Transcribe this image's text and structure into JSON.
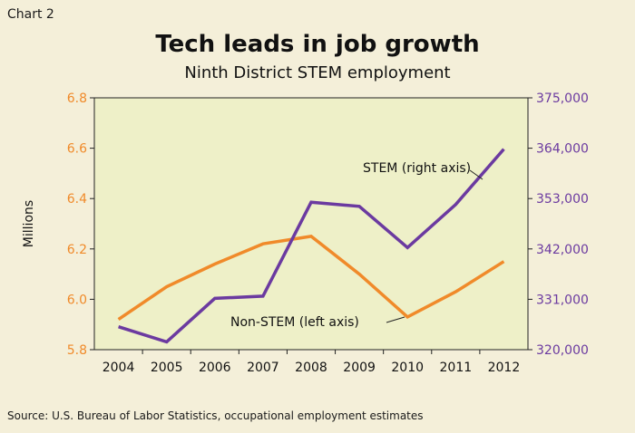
{
  "header": {
    "label": "Chart 2",
    "title": "Tech leads in job growth",
    "subtitle": "Ninth District STEM employment"
  },
  "footer": {
    "source": "Source: U.S. Bureau of Labor Statistics, occupational employment estimates"
  },
  "colors": {
    "background": "#f4efd9",
    "plot_area": "#eef0c8",
    "non_stem": "#f08a2a",
    "stem": "#6b3aa0"
  },
  "chart_data": {
    "type": "line",
    "title": "Tech leads in job growth",
    "subtitle": "Ninth District STEM employment",
    "categories": [
      "2004",
      "2005",
      "2006",
      "2007",
      "2008",
      "2009",
      "2010",
      "2011",
      "2012"
    ],
    "ylabel": "Millions",
    "ylim_left": [
      5.8,
      6.8
    ],
    "yticks_left": [
      "5.8",
      "6.0",
      "6.2",
      "6.4",
      "6.6",
      "6.8"
    ],
    "ylim_right": [
      320000,
      375000
    ],
    "yticks_right": [
      "320,000",
      "331,000",
      "342,000",
      "353,000",
      "364,000",
      "375,000"
    ],
    "grid": false,
    "series": [
      {
        "name": "Non-STEM (left axis)",
        "axis": "left",
        "color": "#f08a2a",
        "values": [
          5.92,
          6.05,
          6.14,
          6.22,
          6.25,
          6.1,
          5.93,
          6.03,
          6.15
        ]
      },
      {
        "name": "STEM (right axis)",
        "axis": "right",
        "color": "#6b3aa0",
        "values": [
          325000,
          321700,
          331200,
          331700,
          352200,
          351300,
          342300,
          351700,
          363800
        ]
      }
    ],
    "annotations": [
      {
        "text": "STEM (right axis)",
        "series": "STEM (right axis)"
      },
      {
        "text": "Non-STEM (left axis)",
        "series": "Non-STEM (left axis)"
      }
    ]
  }
}
